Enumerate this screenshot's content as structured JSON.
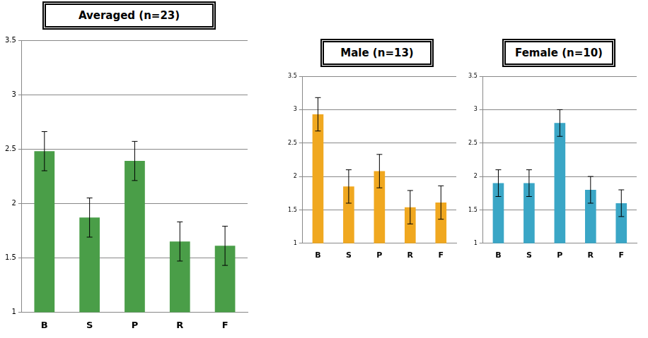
{
  "chart_data": [
    {
      "type": "bar",
      "title": "Averaged (n=23)",
      "categories": [
        "B",
        "S",
        "P",
        "R",
        "F"
      ],
      "values": [
        2.48,
        1.87,
        2.39,
        1.65,
        1.61
      ],
      "errors": [
        0.18,
        0.18,
        0.18,
        0.18,
        0.18
      ],
      "color": "#4a9e48",
      "ylim": [
        1,
        3.5
      ],
      "yticks": [
        1,
        1.5,
        2,
        2.5,
        3,
        3.5
      ],
      "grid": true
    },
    {
      "type": "bar",
      "title": "Male (n=13)",
      "categories": [
        "B",
        "S",
        "P",
        "R",
        "F"
      ],
      "values": [
        2.93,
        1.85,
        2.08,
        1.54,
        1.61
      ],
      "errors": [
        0.25,
        0.25,
        0.25,
        0.25,
        0.25
      ],
      "color": "#f0a820",
      "ylim": [
        1,
        3.5
      ],
      "yticks": [
        1,
        1.5,
        2,
        2.5,
        3,
        3.5
      ],
      "grid": true
    },
    {
      "type": "bar",
      "title": "Female (n=10)",
      "categories": [
        "B",
        "S",
        "P",
        "R",
        "F"
      ],
      "values": [
        1.9,
        1.9,
        2.8,
        1.8,
        1.6
      ],
      "errors": [
        0.2,
        0.2,
        0.2,
        0.2,
        0.2
      ],
      "color": "#3aa6c6",
      "ylim": [
        1,
        3.5
      ],
      "yticks": [
        1,
        1.5,
        2,
        2.5,
        3,
        3.5
      ],
      "grid": true
    }
  ]
}
